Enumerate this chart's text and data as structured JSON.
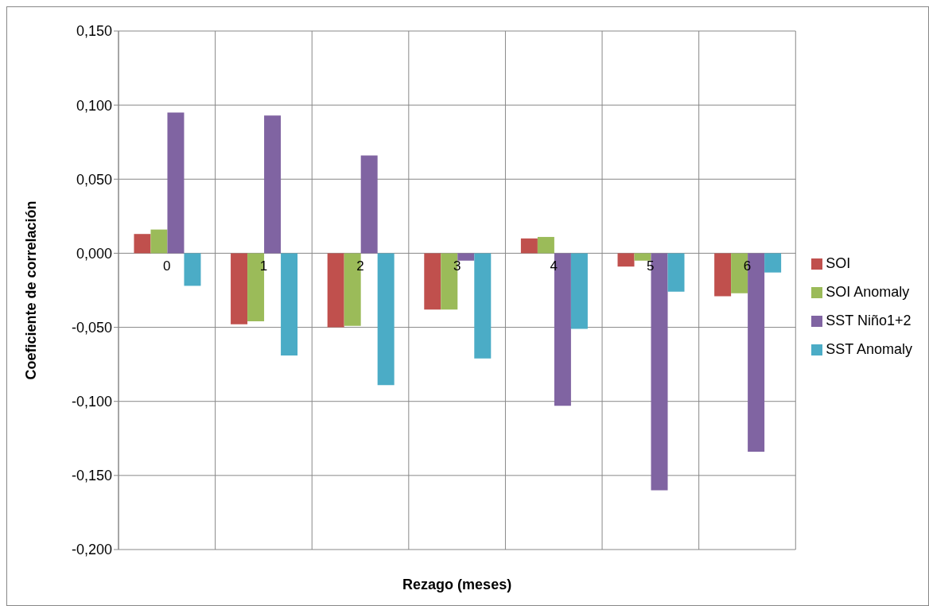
{
  "chart_data": {
    "type": "bar",
    "xlabel": "Rezago (meses)",
    "ylabel": "Coeficiente de correlación",
    "categories": [
      "0",
      "1",
      "2",
      "3",
      "4",
      "5",
      "6"
    ],
    "series": [
      {
        "name": "SOI",
        "color": "#c0504d",
        "values": [
          0.013,
          -0.048,
          -0.05,
          -0.038,
          0.01,
          -0.009,
          -0.029
        ]
      },
      {
        "name": "SOI Anomaly",
        "color": "#9bbb59",
        "values": [
          0.016,
          -0.046,
          -0.049,
          -0.038,
          0.011,
          -0.005,
          -0.027
        ]
      },
      {
        "name": "SST Niño1+2",
        "color": "#8064a2",
        "values": [
          0.095,
          0.093,
          0.066,
          -0.005,
          -0.103,
          -0.16,
          -0.134
        ]
      },
      {
        "name": "SST Anomaly",
        "color": "#4bacc6",
        "values": [
          -0.022,
          -0.069,
          -0.089,
          -0.071,
          -0.051,
          -0.026,
          -0.013
        ]
      }
    ],
    "ylim": [
      -0.2,
      0.15
    ],
    "yticks": [
      {
        "value": -0.2,
        "label": "-0,200"
      },
      {
        "value": -0.15,
        "label": "-0,150"
      },
      {
        "value": -0.1,
        "label": "-0,100"
      },
      {
        "value": -0.05,
        "label": "-0,050"
      },
      {
        "value": 0,
        "label": "0,000"
      },
      {
        "value": 0.05,
        "label": "0,050"
      },
      {
        "value": 0.1,
        "label": "0,100"
      },
      {
        "value": 0.15,
        "label": "0,150"
      }
    ],
    "grid": true,
    "legend": "right"
  }
}
